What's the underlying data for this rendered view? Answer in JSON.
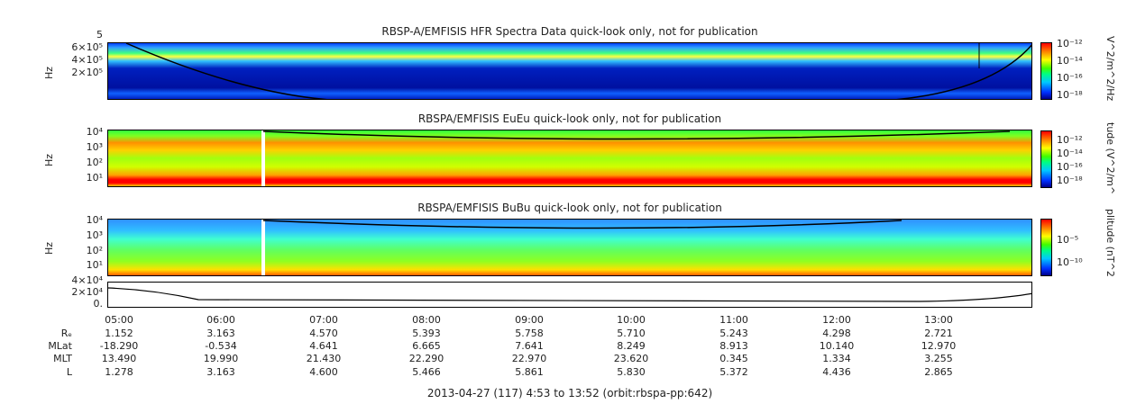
{
  "panels": [
    {
      "title": "RBSP-A/EMFISIS  HFR Spectra Data quick-look only, not for publication",
      "ylabel": "Hz",
      "yticks": [
        "6×10⁵",
        "4×10⁵",
        "2×10⁵"
      ],
      "ytop": "5",
      "cbar_label": "V^2/m^2/Hz",
      "cbar_ticks": [
        "10⁻¹²",
        "10⁻¹⁴",
        "10⁻¹⁶",
        "10⁻¹⁸"
      ]
    },
    {
      "title": "RBSPA/EMFISIS  EuEu quick-look only, not for publication",
      "ylabel": "Hz",
      "yticks": [
        "10⁴",
        "10³",
        "10²",
        "10¹"
      ],
      "cbar_label": "tude (V^2/m^",
      "cbar_ticks": [
        "10⁻¹²",
        "10⁻¹⁴",
        "10⁻¹⁶",
        "10⁻¹⁸"
      ]
    },
    {
      "title": "RBSPA/EMFISIS  BuBu quick-look only, not for publication",
      "ylabel": "Hz",
      "yticks": [
        "10⁴",
        "10³",
        "10²",
        "10¹"
      ],
      "cbar_label": "plitude (nT^2",
      "cbar_ticks": [
        "10⁻⁵",
        "10⁻¹⁰"
      ]
    },
    {
      "title": "",
      "ylabel": "",
      "yticks": [
        "4×10⁴",
        "2×10⁴",
        "0."
      ]
    }
  ],
  "chart_data": {
    "type": "heatmap",
    "x_ticks": [
      "05:00",
      "06:00",
      "07:00",
      "08:00",
      "09:00",
      "10:00",
      "11:00",
      "12:00",
      "13:00"
    ],
    "ephemeris": [
      {
        "label": "Rₑ",
        "values": [
          "1.152",
          "3.163",
          "4.570",
          "5.393",
          "5.758",
          "5.710",
          "5.243",
          "4.298",
          "2.721"
        ]
      },
      {
        "label": "MLat",
        "values": [
          "-18.290",
          "-0.534",
          "4.641",
          "6.665",
          "7.641",
          "8.249",
          "8.913",
          "10.140",
          "12.970"
        ]
      },
      {
        "label": "MLT",
        "values": [
          "13.490",
          "19.990",
          "21.430",
          "22.290",
          "22.970",
          "23.620",
          "0.345",
          "1.334",
          "3.255"
        ]
      },
      {
        "label": "L",
        "values": [
          "1.278",
          "3.163",
          "4.600",
          "5.466",
          "5.861",
          "5.830",
          "5.372",
          "4.436",
          "2.865"
        ]
      }
    ],
    "footer": "2013-04-27 (117) 4:53 to 13:52 (orbit:rbspa-pp:642)"
  }
}
